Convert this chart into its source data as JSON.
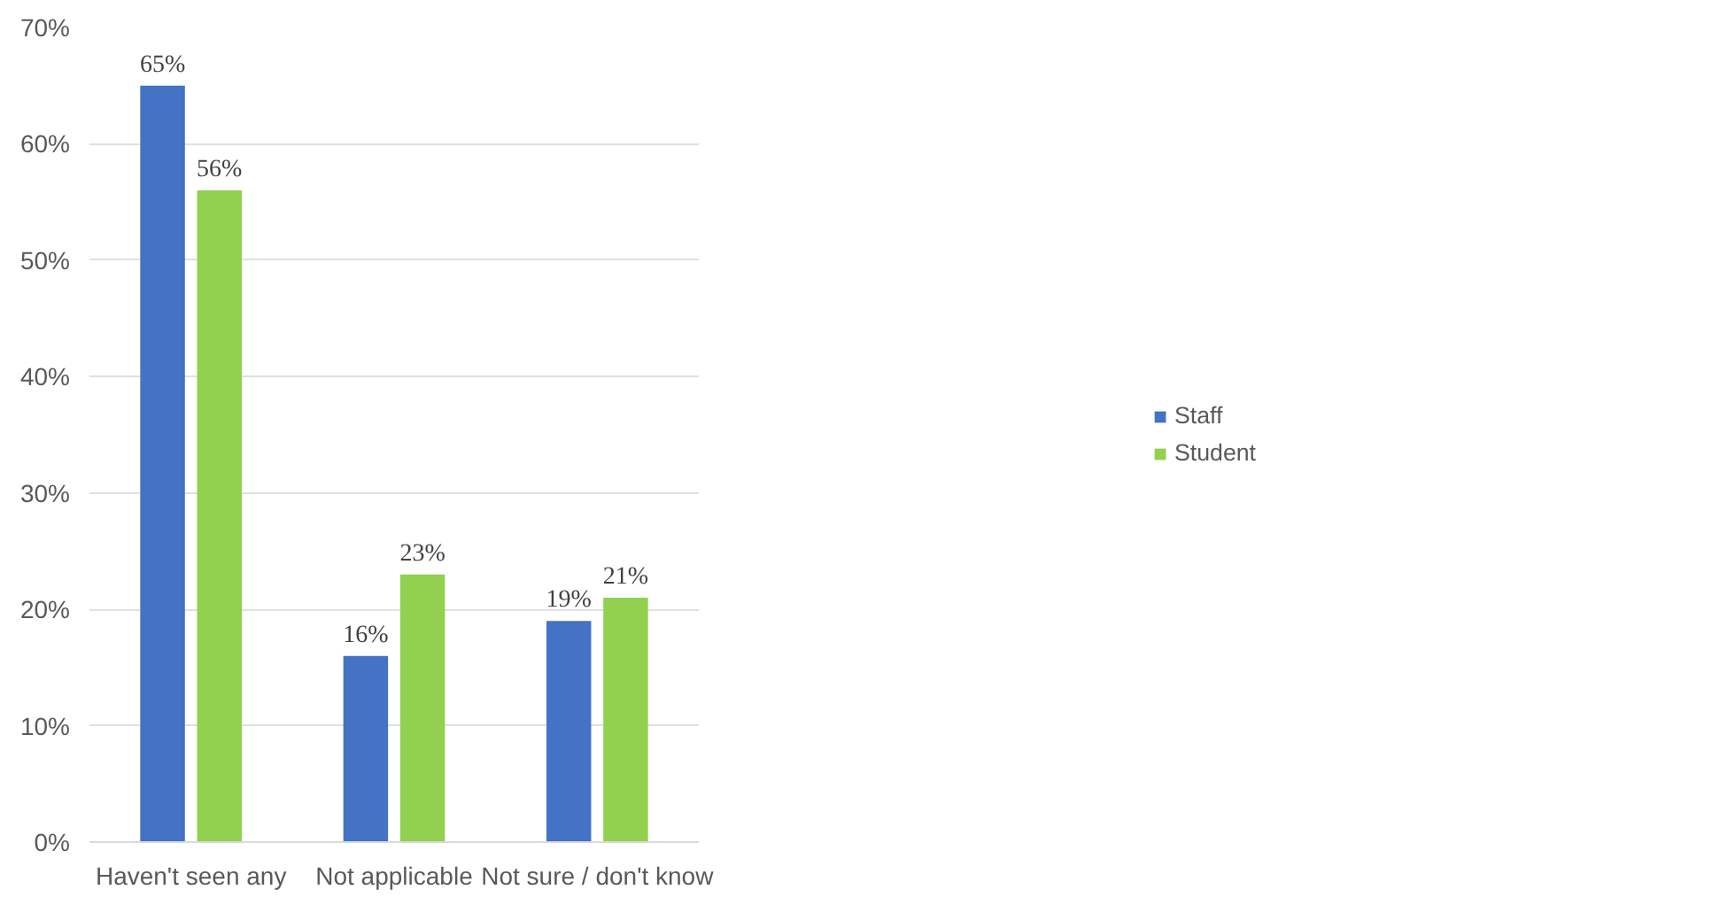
{
  "chart_data": {
    "type": "bar",
    "categories": [
      "Haven't seen any",
      "Not applicable",
      "Not sure / don't know"
    ],
    "series": [
      {
        "name": "Staff",
        "color": "#4472c4",
        "values": [
          65,
          16,
          19
        ],
        "value_labels": [
          "65%",
          "16%",
          "19%"
        ]
      },
      {
        "name": "Student",
        "color": "#92d050",
        "values": [
          56,
          23,
          21
        ],
        "value_labels": [
          "56%",
          "23%",
          "21%"
        ]
      }
    ],
    "ylim": [
      0,
      70
    ],
    "yticks": [
      {
        "value": 0,
        "label": "0%"
      },
      {
        "value": 10,
        "label": "10%"
      },
      {
        "value": 20,
        "label": "20%"
      },
      {
        "value": 30,
        "label": "30%"
      },
      {
        "value": 40,
        "label": "40%"
      },
      {
        "value": 50,
        "label": "50%"
      },
      {
        "value": 60,
        "label": "60%"
      },
      {
        "value": 70,
        "label": "70%"
      }
    ],
    "grid": "y",
    "legend": "right"
  }
}
